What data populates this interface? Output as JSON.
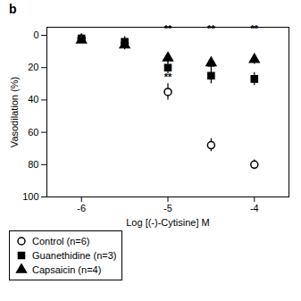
{
  "chart_data": {
    "type": "scatter",
    "title": "b",
    "xlabel": "Log [(-)-Cytisine] M",
    "ylabel": "Vasodilation (%)",
    "x": [
      -6,
      -5.5,
      -5,
      -4.5,
      -4
    ],
    "xlim": [
      -6.4,
      -3.6
    ],
    "xticks": [
      -6,
      -5,
      -4
    ],
    "ylim": [
      100,
      -5
    ],
    "yticks": [
      0,
      20,
      40,
      60,
      80,
      100
    ],
    "grid": false,
    "legend": "lower left",
    "series": [
      {
        "name": "Control (n=6)",
        "color": "black",
        "marker": "open_circle",
        "values": [
          2,
          5,
          35,
          68,
          80
        ],
        "yerr": [
          3,
          4,
          5,
          4,
          3
        ]
      },
      {
        "name": "Guanethidine (n=3)",
        "color": "black",
        "marker": "square",
        "values": [
          2,
          4,
          20,
          25,
          27
        ],
        "yerr": [
          2,
          3,
          4,
          5,
          4
        ]
      },
      {
        "name": "Capsaicin (n=4)",
        "color": "black",
        "marker": "triangle",
        "values": [
          3,
          6,
          14,
          17,
          15
        ],
        "yerr": [
          2,
          2,
          3,
          3,
          3
        ]
      }
    ],
    "annotations": [
      {
        "x": -5.0,
        "y": -4,
        "text": "**"
      },
      {
        "x": -4.5,
        "y": -4,
        "text": "**"
      },
      {
        "x": -4.0,
        "y": -4,
        "text": "**"
      },
      {
        "x": -5.0,
        "y": 26,
        "text": "**"
      },
      {
        "x": -4.5,
        "y": 20,
        "text": "**"
      }
    ]
  }
}
